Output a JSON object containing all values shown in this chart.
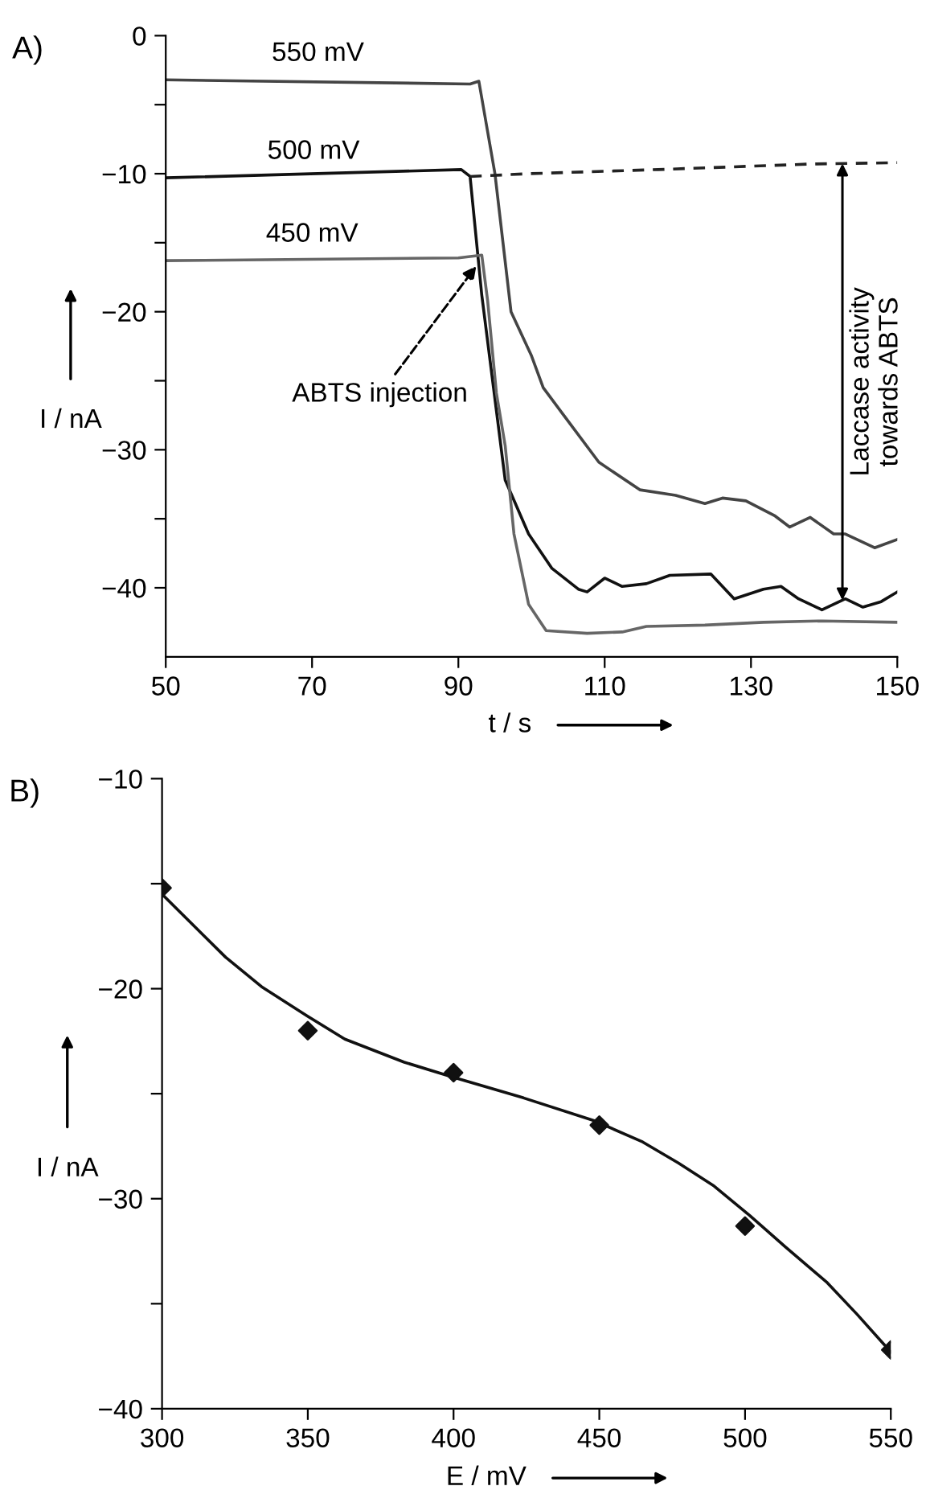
{
  "chart_data": [
    {
      "type": "line",
      "title": "A)",
      "xlabel": "t / s",
      "ylabel": "I / nA",
      "xlim": [
        50,
        150
      ],
      "xticks": [
        50,
        70,
        90,
        110,
        130,
        150
      ],
      "ylim": [
        -45,
        0
      ],
      "yticks": [
        0,
        {
          "value": -5,
          "label": null
        },
        {
          "value": -10,
          "label": "−10"
        },
        {
          "value": -15,
          "label": null
        },
        {
          "value": -20,
          "label": "−20"
        },
        {
          "value": -25,
          "label": null
        },
        {
          "value": -30,
          "label": "−30"
        },
        {
          "value": -35,
          "label": null
        },
        {
          "value": -40,
          "label": "−40"
        }
      ],
      "grid": false,
      "legend": false,
      "marker": "none",
      "line_style": "solid",
      "series": [
        {
          "name": "550 mV",
          "color": "#444444",
          "x": [
            50,
            91.6,
            92.8,
            95.0,
            97.2,
            100,
            101.6,
            104.4,
            109.2,
            114.8,
            119.7,
            123.7,
            126.1,
            129.3,
            133.3,
            135.3,
            138.1,
            141.3,
            142.9,
            146.9,
            150
          ],
          "values": [
            -3.2,
            -3.5,
            -3.3,
            -10,
            -20,
            -23.2,
            -25.5,
            -27.5,
            -30.9,
            -32.9,
            -33.3,
            -33.9,
            -33.5,
            -33.7,
            -34.8,
            -35.6,
            -34.9,
            -36.1,
            -36.1,
            -37.1,
            -36.5
          ]
        },
        {
          "name": "500 mV",
          "color": "#111111",
          "x": [
            50,
            90.4,
            91.6,
            93.2,
            94.8,
            96.4,
            99.6,
            102.8,
            106.4,
            107.6,
            110,
            112.4,
            115.7,
            118.9,
            124.5,
            127.7,
            131.7,
            134.1,
            136.5,
            139.7,
            142.9,
            145.3,
            147.8,
            150
          ],
          "values": [
            -10.3,
            -9.7,
            -10.2,
            -18.8,
            -25.5,
            -32.2,
            -36.1,
            -38.6,
            -40.1,
            -40.3,
            -39.3,
            -39.9,
            -39.7,
            -39.1,
            -39.0,
            -40.8,
            -40.1,
            -39.9,
            -40.8,
            -41.6,
            -40.8,
            -41.4,
            -41.0,
            -40.3
          ]
        },
        {
          "name": "450 mV",
          "color": "#666666",
          "x": [
            50,
            90,
            93.2,
            94,
            95.2,
            96.4,
            97.6,
            99.6,
            102,
            107.6,
            112.4,
            115.7,
            123.7,
            131.7,
            139.7,
            150
          ],
          "values": [
            -16.3,
            -16.1,
            -15.9,
            -19.2,
            -25.9,
            -29.7,
            -36.1,
            -41.2,
            -43.1,
            -43.3,
            -43.2,
            -42.8,
            -42.7,
            -42.5,
            -42.4,
            -42.5
          ]
        },
        {
          "color": "#222222",
          "line_style": "dashed",
          "x": [
            91.6,
            99.6,
            117.3,
            138.1,
            150
          ],
          "values": [
            -10.2,
            -10.0,
            -9.7,
            -9.3,
            -9.2
          ]
        }
      ],
      "annotations": [
        {
          "text": "ABTS injection",
          "x": 93,
          "y": -16.3
        },
        "Laccase activity\ntowards ABTS"
      ]
    },
    {
      "type": "scatter",
      "title": "B)",
      "xlabel": "E / mV",
      "ylabel": "I / nA",
      "xlim": [
        300,
        550
      ],
      "xticks": [
        300,
        350,
        400,
        450,
        500,
        550
      ],
      "ylim": [
        -40,
        -10
      ],
      "yticks": [
        {
          "value": -10,
          "label": "−10"
        },
        {
          "value": -15,
          "label": null
        },
        {
          "value": -20,
          "label": "−20"
        },
        {
          "value": -25,
          "label": null
        },
        {
          "value": -30,
          "label": "−30"
        },
        {
          "value": -35,
          "label": null
        },
        {
          "value": -40,
          "label": "−40"
        }
      ],
      "grid": false,
      "legend": false,
      "marker": "diamond",
      "series": [
        {
          "color": "#111111",
          "x": [
            300,
            350,
            400,
            450,
            500,
            550
          ],
          "values": [
            -15.2,
            -22.0,
            -24.0,
            -26.5,
            -31.3,
            -37.2
          ]
        },
        {
          "type": "line",
          "color": "#111111",
          "marker": "none",
          "x": [
            300,
            311.6,
            321.8,
            334.1,
            349.8,
            362.7,
            383.1,
            399.5,
            424,
            448.5,
            464.9,
            477.1,
            489.4,
            501.6,
            513.9,
            528.2,
            538.4,
            550
          ],
          "values": [
            -15.5,
            -17.1,
            -18.5,
            -19.9,
            -21.3,
            -22.4,
            -23.5,
            -24.2,
            -25.2,
            -26.3,
            -27.3,
            -28.3,
            -29.4,
            -30.8,
            -32.3,
            -34.0,
            -35.5,
            -37.3
          ]
        }
      ]
    }
  ]
}
